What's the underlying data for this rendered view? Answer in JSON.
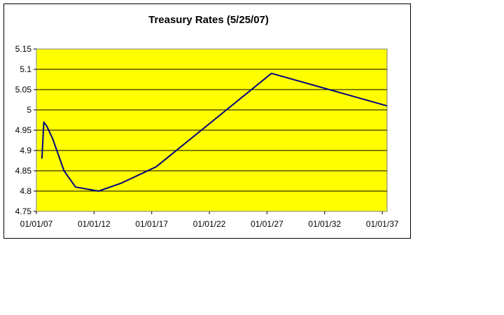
{
  "chart_data": {
    "type": "line",
    "title": "Treasury Rates (5/25/07)",
    "xlabel": "",
    "ylabel": "",
    "x_ticks": [
      "01/01/07",
      "01/01/12",
      "01/01/17",
      "01/01/22",
      "01/01/27",
      "01/01/32",
      "01/01/37"
    ],
    "x_range": [
      "2007-01-01",
      "2037-06-01"
    ],
    "y_ticks": [
      "4.75",
      "4.8",
      "4.85",
      "4.9",
      "4.95",
      "5",
      "5.05",
      "5.1",
      "5.15"
    ],
    "ylim": [
      4.75,
      5.15
    ],
    "grid": "horizontal",
    "legend": "none",
    "plot_background": "#FFFF00",
    "line_color": "#000080",
    "series": [
      {
        "x": [
          "2007-06-25",
          "2007-08-25",
          "2007-11-25",
          "2008-05-25",
          "2009-05-25",
          "2010-05-25",
          "2012-05-25",
          "2014-05-25",
          "2017-05-25",
          "2027-05-25",
          "2037-05-25"
        ],
        "values": [
          4.88,
          4.97,
          4.96,
          4.93,
          4.85,
          4.81,
          4.8,
          4.82,
          4.86,
          5.09,
          5.01
        ]
      }
    ]
  }
}
